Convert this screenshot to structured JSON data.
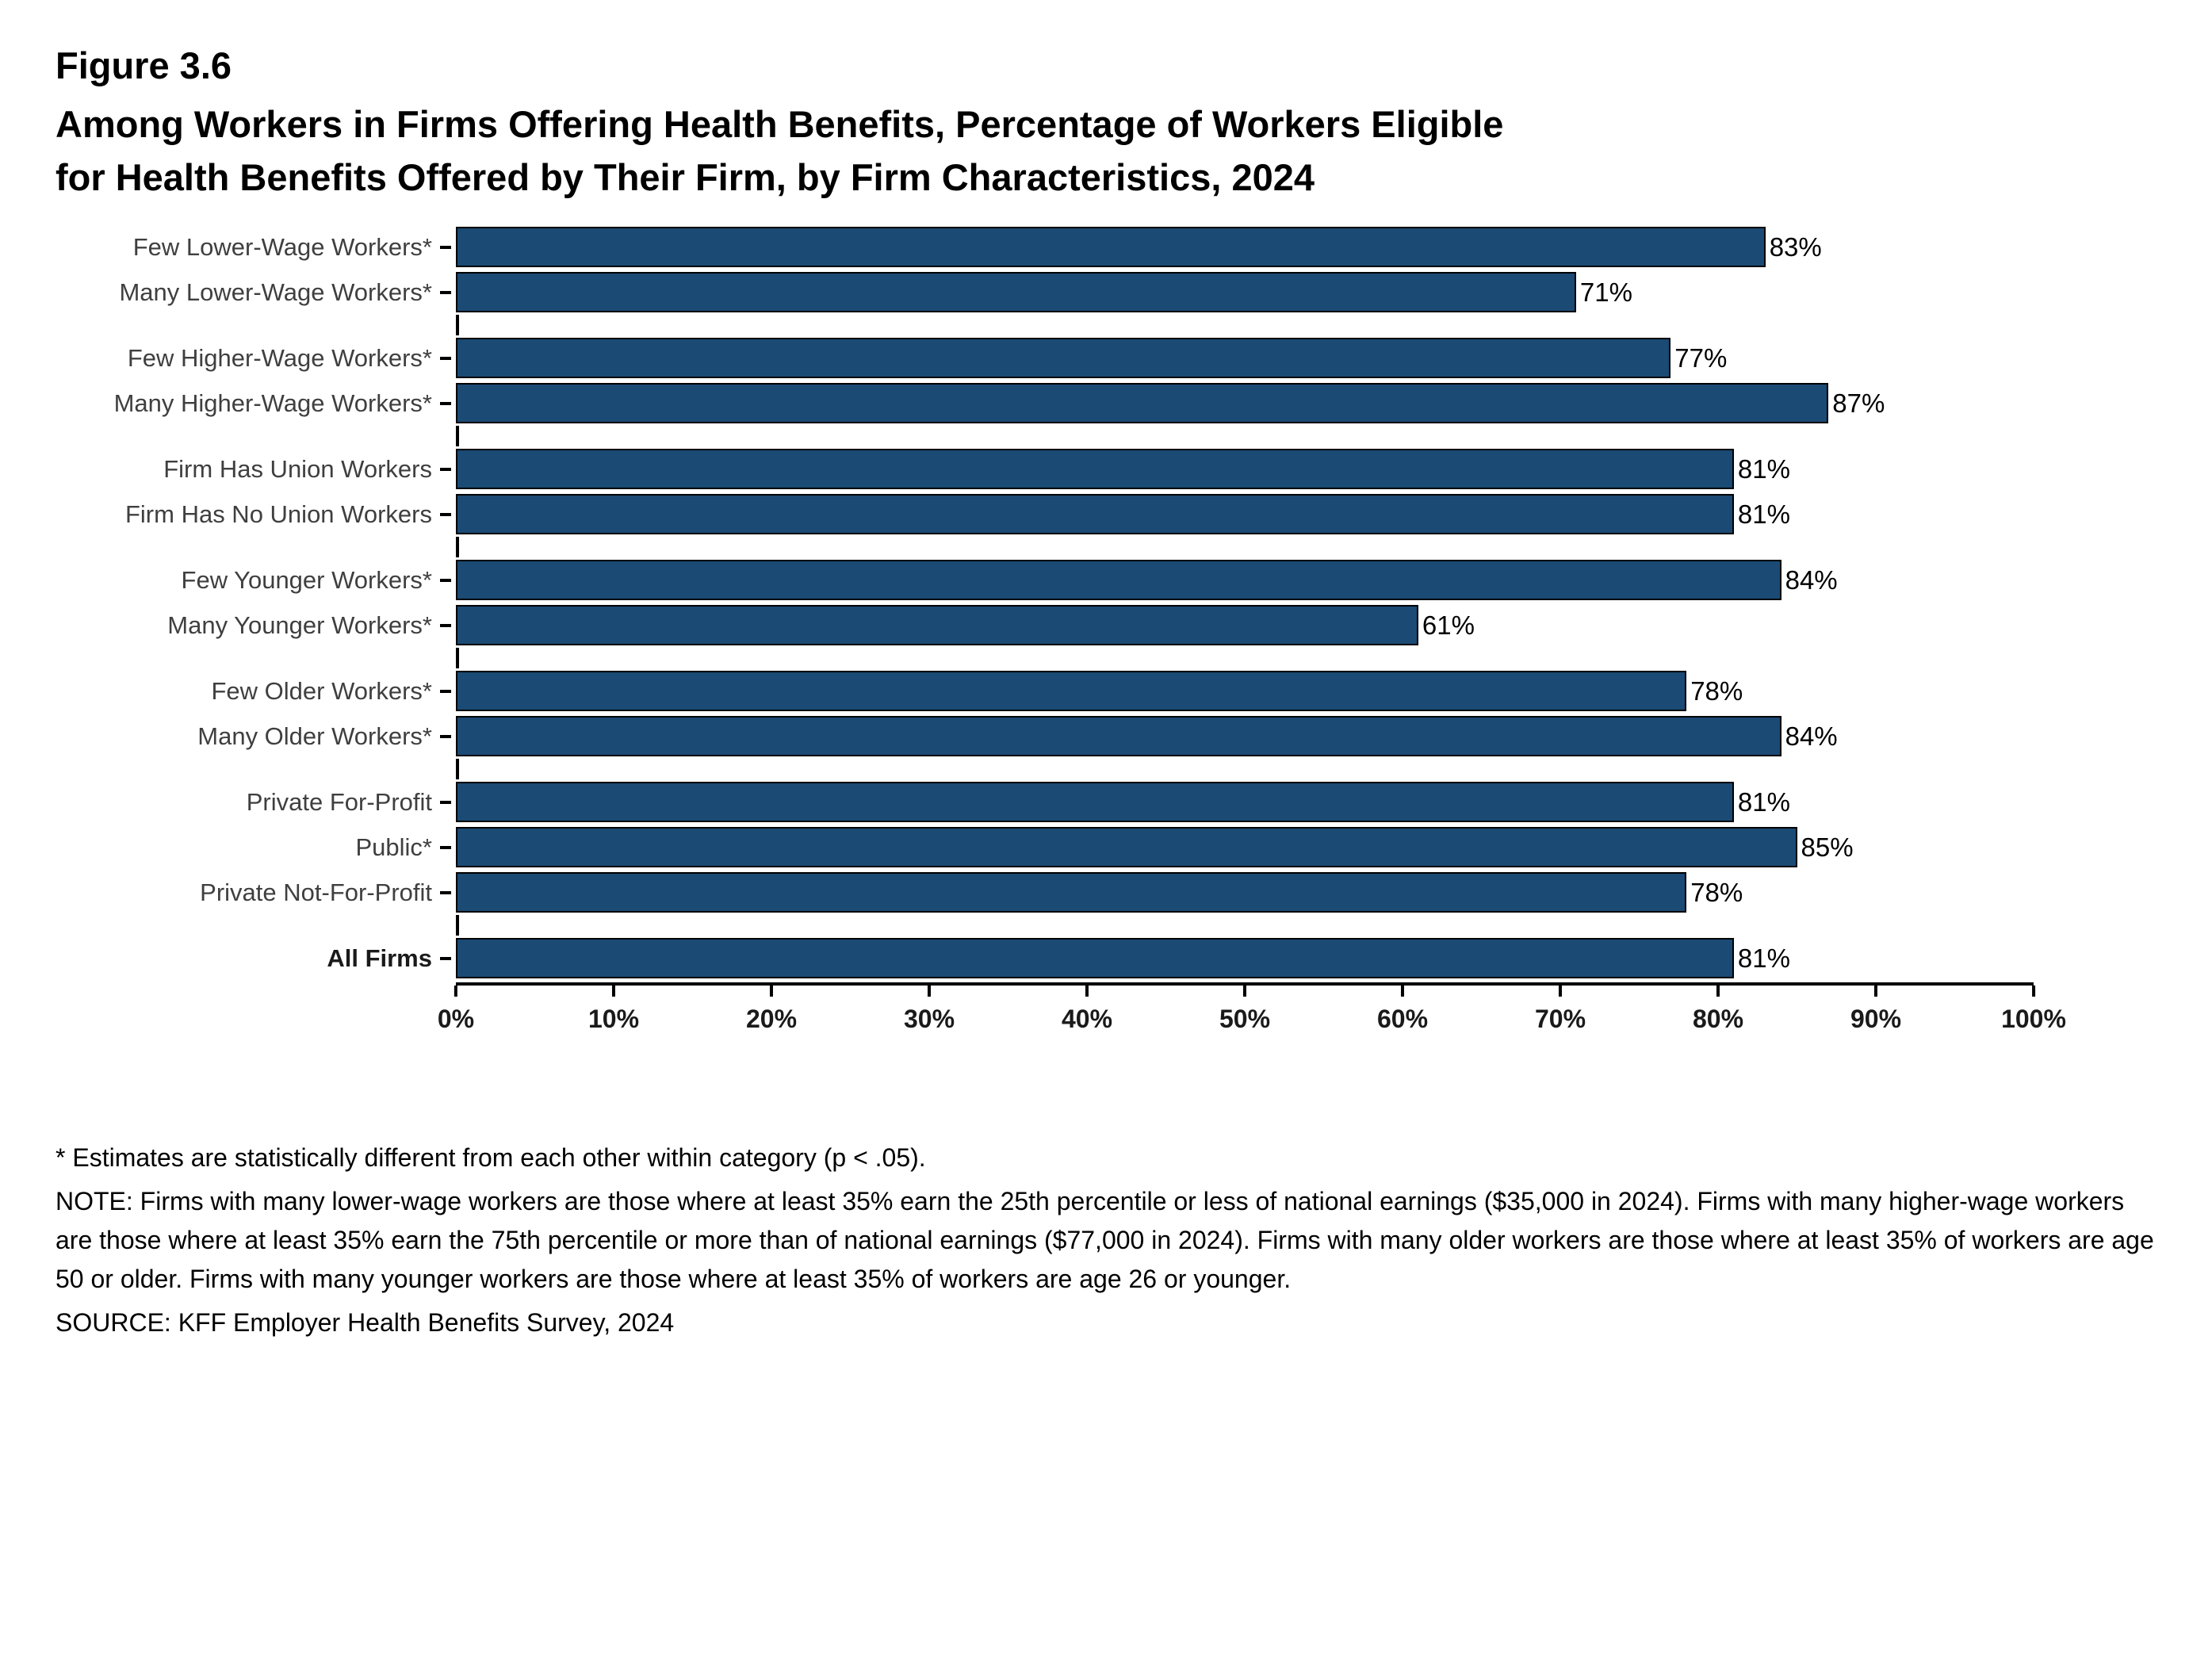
{
  "header": {
    "figure_label": "Figure 3.6",
    "title": "Among Workers in Firms Offering Health Benefits, Percentage of Workers Eligible for Health Benefits Offered by Their Firm, by Firm Characteristics, 2024"
  },
  "chart_data": {
    "type": "bar",
    "orientation": "horizontal",
    "title": "Among Workers in Firms Offering Health Benefits, Percentage of Workers Eligible for Health Benefits Offered by Their Firm, by Firm Characteristics, 2024",
    "xlabel": "",
    "ylabel": "",
    "xlim": [
      0,
      100
    ],
    "x_ticks": [
      "0%",
      "10%",
      "20%",
      "30%",
      "40%",
      "50%",
      "60%",
      "70%",
      "80%",
      "90%",
      "100%"
    ],
    "bar_color": "#1b4a74",
    "value_suffix": "%",
    "grid": false,
    "groups": [
      {
        "bars": [
          {
            "label": "Few Lower-Wage Workers*",
            "value": 83
          },
          {
            "label": "Many Lower-Wage Workers*",
            "value": 71
          }
        ]
      },
      {
        "bars": [
          {
            "label": "Few Higher-Wage Workers*",
            "value": 77
          },
          {
            "label": "Many Higher-Wage Workers*",
            "value": 87
          }
        ]
      },
      {
        "bars": [
          {
            "label": "Firm Has Union Workers",
            "value": 81
          },
          {
            "label": "Firm Has No Union Workers",
            "value": 81
          }
        ]
      },
      {
        "bars": [
          {
            "label": "Few Younger Workers*",
            "value": 84
          },
          {
            "label": "Many Younger Workers*",
            "value": 61
          }
        ]
      },
      {
        "bars": [
          {
            "label": "Few Older Workers*",
            "value": 78
          },
          {
            "label": "Many Older Workers*",
            "value": 84
          }
        ]
      },
      {
        "bars": [
          {
            "label": "Private For-Profit",
            "value": 81
          },
          {
            "label": "Public*",
            "value": 85
          },
          {
            "label": "Private Not-For-Profit",
            "value": 78
          }
        ]
      },
      {
        "bars": [
          {
            "label": "All Firms",
            "value": 81,
            "bold": true
          }
        ]
      }
    ]
  },
  "footnotes": {
    "stat": "* Estimates are statistically different from each other within category (p < .05).",
    "note": "NOTE: Firms with many lower-wage workers are those where at least 35% earn the 25th percentile or less of national earnings ($35,000 in 2024). Firms with many higher-wage workers are those where at least 35% earn the 75th percentile or more than of national earnings ($77,000 in 2024). Firms with many older workers are those where at least 35% of workers are age 50 or older. Firms with many younger workers are those where at least 35% of workers are age 26 or younger.",
    "source": "SOURCE: KFF Employer Health Benefits Survey, 2024"
  }
}
